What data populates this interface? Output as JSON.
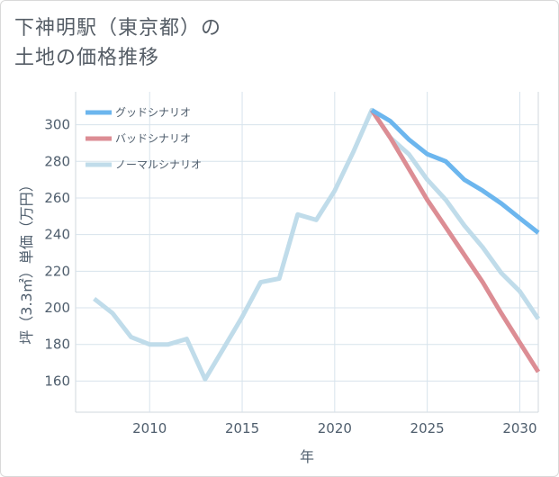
{
  "title_lines": [
    "下神明駅（東京都）の",
    "土地の価格推移"
  ],
  "chart_data": {
    "type": "line",
    "xlabel": "年",
    "ylabel": "坪（3.3㎡）単価（万円）",
    "xlim": [
      2006,
      2031
    ],
    "ylim": [
      143,
      318
    ],
    "xticks": [
      2010,
      2015,
      2020,
      2025,
      2030
    ],
    "yticks": [
      160,
      180,
      200,
      220,
      240,
      260,
      280,
      300
    ],
    "grid": true,
    "legend_position": "top-left",
    "series": [
      {
        "name": "グッドシナリオ",
        "color": "#6cb6ee",
        "x": [
          2022,
          2023,
          2024,
          2025,
          2026,
          2027,
          2028,
          2029,
          2030,
          2031
        ],
        "y": [
          308,
          302,
          292,
          284,
          280,
          270,
          264,
          257,
          249,
          241
        ]
      },
      {
        "name": "バッドシナリオ",
        "color": "#dc8d94",
        "x": [
          2022,
          2023,
          2024,
          2025,
          2026,
          2027,
          2028,
          2029,
          2030,
          2031
        ],
        "y": [
          308,
          293,
          276,
          259,
          244,
          229,
          214,
          197,
          181,
          165
        ]
      },
      {
        "name": "ノーマルシナリオ",
        "color": "#c0dcea",
        "x": [
          2007,
          2008,
          2009,
          2010,
          2011,
          2012,
          2013,
          2014,
          2015,
          2016,
          2017,
          2018,
          2019,
          2020,
          2021,
          2022,
          2023,
          2024,
          2025,
          2026,
          2027,
          2028,
          2029,
          2030,
          2031
        ],
        "y": [
          205,
          197,
          184,
          180,
          180,
          183,
          161,
          178,
          195,
          214,
          216,
          251,
          248,
          264,
          285,
          308,
          293,
          284,
          270,
          259,
          245,
          233,
          219,
          209,
          194
        ]
      }
    ]
  }
}
